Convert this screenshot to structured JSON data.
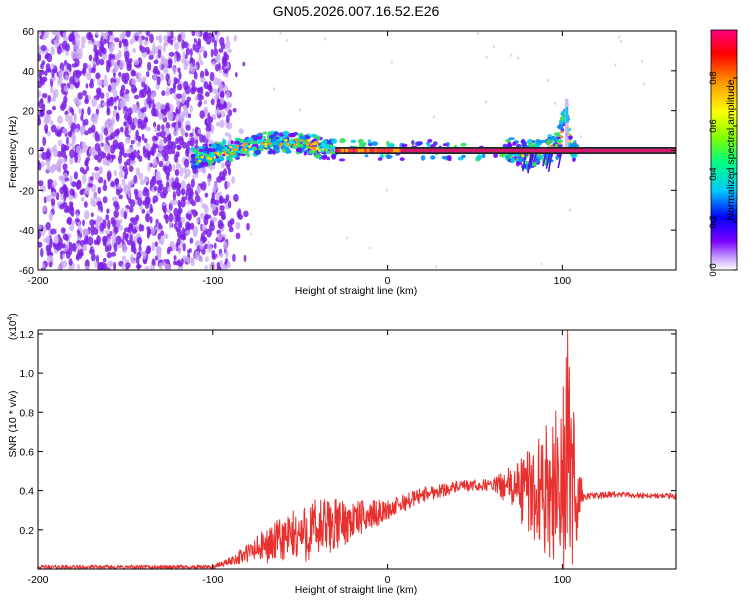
{
  "title": "GN05.2026.007.16.52.E26",
  "colors": {
    "trace": "#e8302f",
    "scatter": "#7c20e6",
    "scatter_light": "#c9a8f2",
    "band": "#d4186a"
  },
  "chart_data": [
    {
      "type": "heatmap",
      "name": "spectrogram",
      "xlabel": "Height of straight line (km)",
      "ylabel": "Frequency (Hz)",
      "xlim": [
        -200,
        165
      ],
      "ylim": [
        -60,
        60
      ],
      "xticks": [
        -200,
        -100,
        0,
        100
      ],
      "yticks": [
        60,
        40,
        20,
        0,
        -20,
        -40,
        -60
      ],
      "grid": false,
      "colorbar": {
        "label": "Normalized spectral amplitude",
        "range": [
          0,
          1
        ],
        "ticks": [
          "0.0",
          "0.2",
          "0.4",
          "0.6",
          "0.8"
        ],
        "tick_values": [
          0.0,
          0.2,
          0.4,
          0.6,
          0.8
        ],
        "colormap": [
          "#ffffff",
          "#c8a0ff",
          "#7a00ff",
          "#0000ff",
          "#00c8ff",
          "#00ff80",
          "#80ff00",
          "#ffff00",
          "#ff9900",
          "#ff0000",
          "#ff0080"
        ]
      },
      "features": {
        "noise_region_km": [
          -200,
          -90
        ],
        "carrier_frequency_hz": 0,
        "carrier_start_km": -30,
        "signal_trace": [
          {
            "x": -110,
            "y": -4
          },
          {
            "x": -100,
            "y": -2
          },
          {
            "x": -90,
            "y": 0
          },
          {
            "x": -80,
            "y": 2
          },
          {
            "x": -70,
            "y": 4
          },
          {
            "x": -60,
            "y": 4
          },
          {
            "x": -50,
            "y": 4
          },
          {
            "x": -40,
            "y": 2
          },
          {
            "x": -30,
            "y": 0
          },
          {
            "x": 0,
            "y": 0
          },
          {
            "x": 70,
            "y": 0
          },
          {
            "x": 80,
            "y": -2
          },
          {
            "x": 90,
            "y": 0
          },
          {
            "x": 98,
            "y": 2
          },
          {
            "x": 102,
            "y": 20
          },
          {
            "x": 105,
            "y": 0
          },
          {
            "x": 165,
            "y": 0
          }
        ]
      }
    },
    {
      "type": "line",
      "name": "snr",
      "xlabel": "Height of straight line (km)",
      "ylabel": "SNR (10 * v/v)",
      "multiplier_label": "(x10",
      "multiplier_exp": "4",
      "multiplier_close": ")",
      "xlim": [
        -200,
        165
      ],
      "ylim": [
        0,
        1.22
      ],
      "xticks": [
        -200,
        -100,
        0,
        100
      ],
      "yticks": [
        0.2,
        0.4,
        0.6,
        0.8,
        1.0,
        1.2
      ],
      "ytick_labels": [
        "0.2",
        "0.4",
        "0.6",
        "0.8",
        "1.0",
        "1.2"
      ],
      "grid": false,
      "series": [
        {
          "name": "SNR",
          "envelope": [
            {
              "x": -200,
              "base": 0.01,
              "amp": 0.01
            },
            {
              "x": -100,
              "base": 0.01,
              "amp": 0.01
            },
            {
              "x": -90,
              "base": 0.04,
              "amp": 0.02
            },
            {
              "x": -75,
              "base": 0.1,
              "amp": 0.07
            },
            {
              "x": -60,
              "base": 0.15,
              "amp": 0.12
            },
            {
              "x": -40,
              "base": 0.2,
              "amp": 0.17
            },
            {
              "x": -20,
              "base": 0.25,
              "amp": 0.1
            },
            {
              "x": 0,
              "base": 0.3,
              "amp": 0.05
            },
            {
              "x": 20,
              "base": 0.38,
              "amp": 0.04
            },
            {
              "x": 40,
              "base": 0.42,
              "amp": 0.03
            },
            {
              "x": 60,
              "base": 0.43,
              "amp": 0.03
            },
            {
              "x": 70,
              "base": 0.42,
              "amp": 0.1
            },
            {
              "x": 80,
              "base": 0.4,
              "amp": 0.22
            },
            {
              "x": 90,
              "base": 0.4,
              "amp": 0.32
            },
            {
              "x": 100,
              "base": 0.45,
              "amp": 0.45
            },
            {
              "x": 103,
              "base": 0.5,
              "amp": 0.7
            },
            {
              "x": 108,
              "base": 0.4,
              "amp": 0.3
            },
            {
              "x": 112,
              "base": 0.37,
              "amp": 0.02
            },
            {
              "x": 130,
              "base": 0.38,
              "amp": 0.015
            },
            {
              "x": 165,
              "base": 0.37,
              "amp": 0.015
            }
          ],
          "peak": {
            "x": 103,
            "y": 1.22
          }
        }
      ]
    }
  ]
}
